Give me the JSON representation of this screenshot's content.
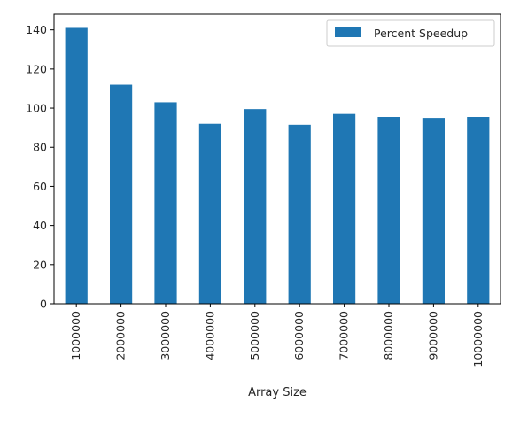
{
  "chart_data": {
    "type": "bar",
    "categories": [
      "1000000",
      "2000000",
      "3000000",
      "4000000",
      "5000000",
      "6000000",
      "7000000",
      "8000000",
      "9000000",
      "10000000"
    ],
    "series": [
      {
        "name": "Percent Speedup",
        "values": [
          141,
          112,
          103,
          92,
          99.5,
          91.5,
          97,
          95.5,
          95,
          95.5
        ],
        "color": "#1f77b4"
      }
    ],
    "title": "",
    "xlabel": "Array Size",
    "ylabel": "",
    "ylim": [
      0,
      148
    ],
    "yticks": [
      0,
      20,
      40,
      60,
      80,
      100,
      120,
      140
    ],
    "grid": false,
    "legend": "top-right"
  }
}
